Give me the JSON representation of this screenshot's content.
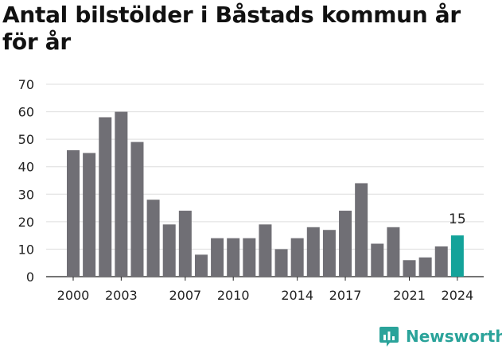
{
  "title": "Antal bilstölder i Båstads kommun år för år",
  "brand": {
    "name": "Newsworthy",
    "logo_icon": "newsworthy-logo-icon",
    "color": "#2aa39a"
  },
  "chart_data": {
    "type": "bar",
    "title": "Antal bilstölder i Båstads kommun år för år",
    "xlabel": "",
    "ylabel": "",
    "ylim": [
      0,
      70
    ],
    "yticks": [
      0,
      10,
      20,
      30,
      40,
      50,
      60,
      70
    ],
    "categories": [
      "2000",
      "2001",
      "2002",
      "2003",
      "2004",
      "2005",
      "2006",
      "2007",
      "2008",
      "2009",
      "2010",
      "2011",
      "2012",
      "2013",
      "2014",
      "2015",
      "2016",
      "2017",
      "2018",
      "2019",
      "2020",
      "2021",
      "2022",
      "2023",
      "2024"
    ],
    "values": [
      46,
      45,
      58,
      60,
      49,
      28,
      19,
      24,
      8,
      14,
      14,
      14,
      19,
      10,
      14,
      18,
      17,
      24,
      34,
      12,
      18,
      6,
      7,
      11,
      15
    ],
    "xtick_labels": [
      "2000",
      "2003",
      "2007",
      "2010",
      "2014",
      "2017",
      "2021",
      "2024"
    ],
    "highlight": {
      "category": "2024",
      "label": "15",
      "color": "#14a39a"
    },
    "bar_color": "#706f75",
    "grid": true
  }
}
